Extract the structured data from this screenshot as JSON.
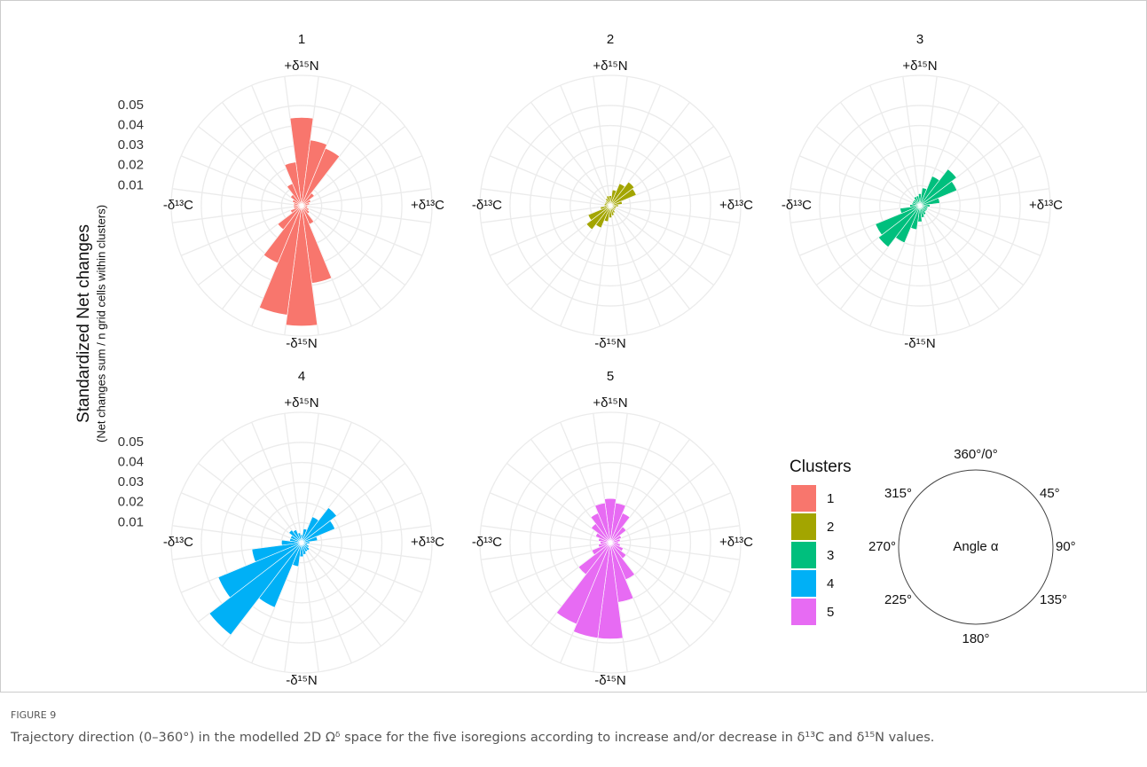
{
  "chart_data": [
    {
      "type": "polar_bar",
      "title": "1",
      "color": "#f8766d",
      "show_tick_labels": true,
      "axis_labels": {
        "top": "+δ¹⁵N",
        "right": "+δ¹³C",
        "bottom": "-δ¹⁵N",
        "left": "-δ¹³C"
      },
      "rlim": [
        0,
        0.065
      ],
      "rticks": [
        0.01,
        0.02,
        0.03,
        0.04,
        0.05
      ],
      "values": [
        0.044,
        0.033,
        0.031,
        0.008,
        0.005,
        0.004,
        0.003,
        0.003,
        0.004,
        0.005,
        0.01,
        0.039,
        0.06,
        0.055,
        0.031,
        0.015,
        0.006,
        0.004,
        0.004,
        0.004,
        0.005,
        0.007,
        0.012,
        0.022
      ]
    },
    {
      "type": "polar_bar",
      "title": "2",
      "color": "#a3a500",
      "show_tick_labels": false,
      "axis_labels": {
        "top": "+δ¹⁵N",
        "right": "+δ¹³C",
        "bottom": "-δ¹⁵N",
        "left": "-δ¹³C"
      },
      "rlim": [
        0,
        0.065
      ],
      "rticks": [
        0.01,
        0.02,
        0.03,
        0.04,
        0.05
      ],
      "values": [
        0.005,
        0.008,
        0.012,
        0.015,
        0.014,
        0.006,
        0.004,
        0.003,
        0.003,
        0.003,
        0.004,
        0.005,
        0.006,
        0.008,
        0.012,
        0.015,
        0.012,
        0.005,
        0.003,
        0.003,
        0.003,
        0.003,
        0.004,
        0.005
      ]
    },
    {
      "type": "polar_bar",
      "title": "3",
      "color": "#00bf7d",
      "show_tick_labels": false,
      "axis_labels": {
        "top": "+δ¹⁵N",
        "right": "+δ¹³C",
        "bottom": "-δ¹⁵N",
        "left": "-δ¹³C"
      },
      "rlim": [
        0,
        0.065
      ],
      "rticks": [
        0.01,
        0.02,
        0.03,
        0.04,
        0.05
      ],
      "values": [
        0.006,
        0.009,
        0.016,
        0.023,
        0.02,
        0.01,
        0.005,
        0.004,
        0.004,
        0.004,
        0.005,
        0.006,
        0.008,
        0.012,
        0.02,
        0.026,
        0.024,
        0.01,
        0.005,
        0.004,
        0.004,
        0.004,
        0.005,
        0.005
      ]
    },
    {
      "type": "polar_bar",
      "title": "4",
      "color": "#00b0f6",
      "show_tick_labels": true,
      "axis_labels": {
        "top": "+δ¹⁵N",
        "right": "+δ¹³C",
        "bottom": "-δ¹⁵N",
        "left": "-δ¹³C"
      },
      "rlim": [
        0,
        0.065
      ],
      "rticks": [
        0.01,
        0.02,
        0.03,
        0.04,
        0.05
      ],
      "values": [
        0.004,
        0.007,
        0.014,
        0.022,
        0.018,
        0.008,
        0.004,
        0.003,
        0.004,
        0.005,
        0.005,
        0.006,
        0.007,
        0.012,
        0.035,
        0.058,
        0.045,
        0.025,
        0.01,
        0.006,
        0.006,
        0.008,
        0.007,
        0.005
      ]
    },
    {
      "type": "polar_bar",
      "title": "5",
      "color": "#e76bf3",
      "show_tick_labels": false,
      "axis_labels": {
        "top": "+δ¹⁵N",
        "right": "+δ¹³C",
        "bottom": "-δ¹⁵N",
        "left": "-δ¹³C"
      },
      "rlim": [
        0,
        0.065
      ],
      "rticks": [
        0.01,
        0.02,
        0.03,
        0.04,
        0.05
      ],
      "values": [
        0.022,
        0.02,
        0.016,
        0.01,
        0.006,
        0.005,
        0.004,
        0.005,
        0.007,
        0.01,
        0.02,
        0.03,
        0.048,
        0.048,
        0.044,
        0.02,
        0.01,
        0.006,
        0.005,
        0.006,
        0.008,
        0.012,
        0.016,
        0.02
      ]
    }
  ],
  "y_axis_title": "Standardized Net changes",
  "y_axis_subtitle": "(Net changes sum / n grid cells within clusters)",
  "legend_title": "Clusters",
  "angle_diagram": {
    "center_label": "Angle α",
    "labels": [
      "360°/0°",
      "45°",
      "90°",
      "135°",
      "180°",
      "225°",
      "270°",
      "315°"
    ]
  },
  "figure_label": "FIGURE 9",
  "caption": "Trajectory direction (0–360°) in the modelled 2D Ωᵟ space for the five isoregions according to increase and/or decrease in δ¹³C and δ¹⁵N values."
}
